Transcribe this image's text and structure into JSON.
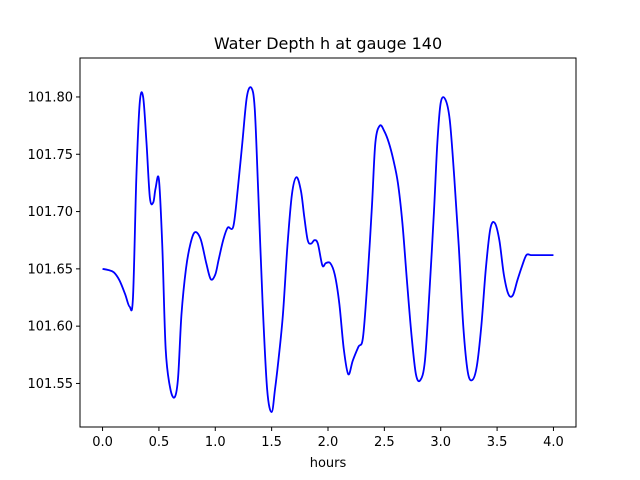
{
  "chart_data": {
    "type": "line",
    "title": "Water Depth h at gauge 140",
    "xlabel": "hours",
    "ylabel": "",
    "xlim": [
      -0.2,
      4.2
    ],
    "ylim": [
      101.512,
      101.834
    ],
    "xticks": [
      0.0,
      0.5,
      1.0,
      1.5,
      2.0,
      2.5,
      3.0,
      3.5,
      4.0
    ],
    "xtick_labels": [
      "0.0",
      "0.5",
      "1.0",
      "1.5",
      "2.0",
      "2.5",
      "3.0",
      "3.5",
      "4.0"
    ],
    "yticks": [
      101.55,
      101.6,
      101.65,
      101.7,
      101.75,
      101.8
    ],
    "ytick_labels": [
      "101.55",
      "101.60",
      "101.65",
      "101.70",
      "101.75",
      "101.80"
    ],
    "grid": false,
    "series": [
      {
        "name": "",
        "color": "#0000ff",
        "x": [
          0.0,
          0.05,
          0.1,
          0.15,
          0.2,
          0.24,
          0.27,
          0.3,
          0.33,
          0.36,
          0.39,
          0.42,
          0.45,
          0.47,
          0.5,
          0.53,
          0.56,
          0.6,
          0.64,
          0.67,
          0.7,
          0.74,
          0.78,
          0.82,
          0.87,
          0.92,
          0.96,
          1.0,
          1.03,
          1.07,
          1.11,
          1.16,
          1.2,
          1.24,
          1.28,
          1.32,
          1.35,
          1.38,
          1.42,
          1.46,
          1.5,
          1.53,
          1.56,
          1.6,
          1.64,
          1.68,
          1.72,
          1.76,
          1.79,
          1.82,
          1.85,
          1.88,
          1.91,
          1.95,
          1.98,
          2.02,
          2.06,
          2.1,
          2.14,
          2.18,
          2.22,
          2.27,
          2.31,
          2.35,
          2.39,
          2.42,
          2.46,
          2.5,
          2.54,
          2.58,
          2.62,
          2.66,
          2.7,
          2.74,
          2.78,
          2.82,
          2.86,
          2.9,
          2.94,
          2.97,
          3.0,
          3.04,
          3.08,
          3.12,
          3.16,
          3.2,
          3.24,
          3.28,
          3.32,
          3.36,
          3.4,
          3.44,
          3.48,
          3.52,
          3.56,
          3.6,
          3.64,
          3.68,
          3.72,
          3.76,
          3.8,
          3.84,
          3.88,
          3.92,
          3.96,
          4.0
        ],
        "y": [
          101.65,
          101.649,
          101.647,
          101.64,
          101.628,
          101.617,
          101.625,
          101.73,
          101.795,
          101.8,
          101.76,
          101.712,
          101.708,
          101.72,
          101.728,
          101.67,
          101.58,
          101.546,
          101.538,
          101.555,
          101.61,
          101.65,
          101.672,
          101.682,
          101.676,
          101.655,
          101.641,
          101.645,
          101.658,
          101.675,
          101.686,
          101.687,
          101.72,
          101.76,
          101.8,
          101.808,
          101.79,
          101.72,
          101.62,
          101.545,
          101.525,
          101.545,
          101.57,
          101.61,
          101.67,
          101.715,
          101.73,
          101.718,
          101.695,
          101.675,
          101.672,
          101.675,
          101.672,
          101.653,
          101.655,
          101.655,
          101.645,
          101.62,
          101.58,
          101.558,
          101.57,
          101.582,
          101.59,
          101.64,
          101.705,
          101.76,
          101.775,
          101.77,
          101.76,
          101.745,
          101.725,
          101.69,
          101.64,
          101.593,
          101.558,
          101.553,
          101.57,
          101.63,
          101.7,
          101.76,
          101.795,
          101.798,
          101.78,
          101.73,
          101.67,
          101.6,
          101.56,
          101.553,
          101.565,
          101.6,
          101.65,
          101.685,
          101.69,
          101.675,
          101.645,
          101.628,
          101.627,
          101.64,
          101.652,
          101.662,
          101.662,
          101.662,
          101.662,
          101.662,
          101.662,
          101.662
        ]
      }
    ]
  }
}
